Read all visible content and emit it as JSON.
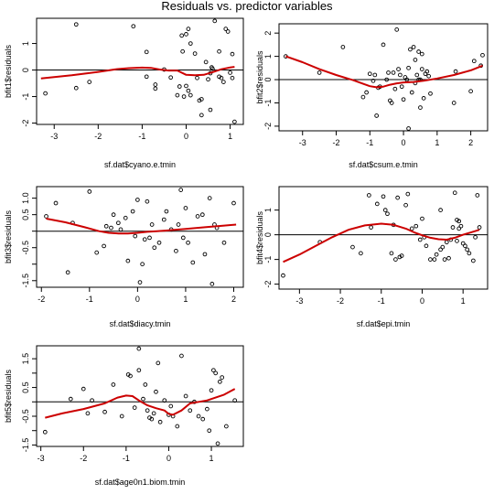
{
  "title": "Residuals vs. predictor variables",
  "colors": {
    "smooth_line": "#cc0000",
    "points": "#000000",
    "zero_line": "#000000"
  },
  "chart_data": [
    {
      "type": "scatter",
      "xlabel": "sf.dat$cyano.e.tmin",
      "ylabel": "bfit1$residuals",
      "xlim": [
        -3.4,
        1.3
      ],
      "ylim": [
        -2.05,
        1.95
      ],
      "xticks": [
        -3,
        -2,
        -1,
        0,
        1
      ],
      "xtick_labels": [
        "-3",
        "-2",
        "-1",
        "0",
        "1"
      ],
      "yticks": [
        -2,
        -1,
        0,
        1
      ],
      "ytick_labels": [
        "-2",
        "-1",
        "0",
        "1"
      ],
      "hline": 0,
      "points": [
        [
          -3.2,
          -0.88
        ],
        [
          -2.5,
          1.72
        ],
        [
          -2.5,
          -0.68
        ],
        [
          -2.2,
          -0.45
        ],
        [
          -1.2,
          1.65
        ],
        [
          -0.9,
          0.68
        ],
        [
          -0.9,
          -0.25
        ],
        [
          -0.7,
          -0.55
        ],
        [
          -0.7,
          -0.7
        ],
        [
          -0.5,
          0.02
        ],
        [
          -0.35,
          -0.28
        ],
        [
          -0.2,
          -0.95
        ],
        [
          -0.15,
          -0.62
        ],
        [
          -0.1,
          1.3
        ],
        [
          -0.08,
          0.7
        ],
        [
          -0.05,
          -1.0
        ],
        [
          0.0,
          1.35
        ],
        [
          0.0,
          -0.6
        ],
        [
          0.05,
          -0.78
        ],
        [
          0.05,
          1.55
        ],
        [
          0.1,
          1.0
        ],
        [
          0.1,
          -0.95
        ],
        [
          0.2,
          0.62
        ],
        [
          0.25,
          -0.3
        ],
        [
          0.3,
          -1.15
        ],
        [
          0.35,
          -1.1
        ],
        [
          0.35,
          -1.7
        ],
        [
          0.45,
          0.3
        ],
        [
          0.5,
          -0.35
        ],
        [
          0.55,
          -1.5
        ],
        [
          0.55,
          -0.12
        ],
        [
          0.58,
          0.1
        ],
        [
          0.6,
          0.05
        ],
        [
          0.65,
          1.85
        ],
        [
          0.75,
          -0.25
        ],
        [
          0.75,
          0.7
        ],
        [
          0.8,
          -0.3
        ],
        [
          0.85,
          -0.45
        ],
        [
          0.9,
          1.55
        ],
        [
          0.95,
          1.45
        ],
        [
          1.0,
          -0.1
        ],
        [
          1.05,
          0.6
        ],
        [
          1.05,
          -0.3
        ],
        [
          1.1,
          -1.95
        ]
      ],
      "smooth": [
        [
          -3.3,
          -0.32
        ],
        [
          -2.6,
          -0.2
        ],
        [
          -2.0,
          -0.07
        ],
        [
          -1.6,
          0.03
        ],
        [
          -1.3,
          0.07
        ],
        [
          -1.0,
          0.09
        ],
        [
          -0.8,
          0.08
        ],
        [
          -0.6,
          0.02
        ],
        [
          -0.4,
          -0.02
        ],
        [
          -0.2,
          -0.02
        ],
        [
          0.0,
          -0.18
        ],
        [
          0.2,
          -0.2
        ],
        [
          0.4,
          -0.18
        ],
        [
          0.6,
          -0.08
        ],
        [
          0.8,
          0.03
        ],
        [
          1.0,
          0.1
        ],
        [
          1.1,
          0.12
        ]
      ]
    },
    {
      "type": "scatter",
      "xlabel": "sf.dat$csum.e.tmin",
      "ylabel": "bfit2$residuals",
      "xlim": [
        -3.7,
        2.5
      ],
      "ylim": [
        -2.2,
        2.4
      ],
      "xticks": [
        -3,
        -2,
        -1,
        0,
        1,
        2
      ],
      "xtick_labels": [
        "-3",
        "-2",
        "-1",
        "0",
        "1",
        "2"
      ],
      "yticks": [
        -2,
        -1,
        0,
        1,
        2
      ],
      "ytick_labels": [
        "-2",
        "-1",
        "0",
        "1",
        "2"
      ],
      "hline": 0,
      "points": [
        [
          -3.5,
          1.0
        ],
        [
          -2.5,
          0.3
        ],
        [
          -1.8,
          1.4
        ],
        [
          -1.2,
          -0.75
        ],
        [
          -1.1,
          -0.55
        ],
        [
          -1.0,
          0.25
        ],
        [
          -0.9,
          -0.05
        ],
        [
          -0.85,
          0.2
        ],
        [
          -0.8,
          -1.55
        ],
        [
          -0.75,
          -0.35
        ],
        [
          -0.7,
          -0.3
        ],
        [
          -0.6,
          1.5
        ],
        [
          -0.5,
          0.0
        ],
        [
          -0.45,
          0.3
        ],
        [
          -0.4,
          -0.9
        ],
        [
          -0.35,
          -1.0
        ],
        [
          -0.3,
          0.3
        ],
        [
          -0.25,
          -0.4
        ],
        [
          -0.2,
          2.15
        ],
        [
          -0.15,
          0.45
        ],
        [
          -0.1,
          0.2
        ],
        [
          -0.05,
          -0.3
        ],
        [
          0.0,
          -0.85
        ],
        [
          0.05,
          0.1
        ],
        [
          0.1,
          0.0
        ],
        [
          0.15,
          0.5
        ],
        [
          0.15,
          -2.1
        ],
        [
          0.2,
          1.3
        ],
        [
          0.25,
          -0.55
        ],
        [
          0.3,
          1.4
        ],
        [
          0.35,
          0.85
        ],
        [
          0.35,
          -0.15
        ],
        [
          0.4,
          0.2
        ],
        [
          0.45,
          0.0
        ],
        [
          0.45,
          1.2
        ],
        [
          0.5,
          0.0
        ],
        [
          0.5,
          -1.2
        ],
        [
          0.55,
          0.45
        ],
        [
          0.55,
          1.1
        ],
        [
          0.6,
          -0.8
        ],
        [
          0.65,
          0.25
        ],
        [
          0.7,
          0.35
        ],
        [
          0.75,
          0.15
        ],
        [
          0.8,
          -0.6
        ],
        [
          1.5,
          -1.0
        ],
        [
          1.55,
          0.35
        ],
        [
          2.0,
          -0.5
        ],
        [
          2.1,
          0.8
        ],
        [
          2.3,
          0.6
        ],
        [
          2.35,
          1.05
        ]
      ],
      "smooth": [
        [
          -3.5,
          1.0
        ],
        [
          -3.0,
          0.75
        ],
        [
          -2.5,
          0.45
        ],
        [
          -2.0,
          0.2
        ],
        [
          -1.5,
          -0.02
        ],
        [
          -1.2,
          -0.18
        ],
        [
          -1.0,
          -0.28
        ],
        [
          -0.8,
          -0.33
        ],
        [
          -0.6,
          -0.3
        ],
        [
          -0.4,
          -0.22
        ],
        [
          -0.2,
          -0.16
        ],
        [
          0.0,
          -0.12
        ],
        [
          0.3,
          -0.1
        ],
        [
          0.6,
          -0.05
        ],
        [
          1.0,
          0.05
        ],
        [
          1.5,
          0.2
        ],
        [
          2.0,
          0.4
        ],
        [
          2.35,
          0.6
        ]
      ]
    },
    {
      "type": "scatter",
      "xlabel": "sf.dat$diacy.tmin",
      "ylabel": "bfit3$residuals",
      "xlim": [
        -2.1,
        2.2
      ],
      "ylim": [
        -1.7,
        1.35
      ],
      "xticks": [
        -2,
        -1,
        0,
        1,
        2
      ],
      "xtick_labels": [
        "-2",
        "-1",
        "0",
        "1",
        "2"
      ],
      "yticks": [
        -1.5,
        -1.0,
        -0.5,
        0.0,
        0.5,
        1.0
      ],
      "ytick_labels": [
        "-1.5",
        "",
        "-0.5",
        "",
        "0.5",
        "1.0"
      ],
      "hline": 0,
      "points": [
        [
          -1.9,
          0.45
        ],
        [
          -1.7,
          0.85
        ],
        [
          -1.45,
          -1.25
        ],
        [
          -1.35,
          0.25
        ],
        [
          -1.0,
          1.2
        ],
        [
          -0.85,
          -0.65
        ],
        [
          -0.7,
          -0.45
        ],
        [
          -0.65,
          0.15
        ],
        [
          -0.55,
          0.1
        ],
        [
          -0.5,
          0.5
        ],
        [
          -0.4,
          0.25
        ],
        [
          -0.35,
          0.05
        ],
        [
          -0.25,
          0.4
        ],
        [
          -0.2,
          -0.9
        ],
        [
          -0.1,
          0.6
        ],
        [
          -0.05,
          -0.15
        ],
        [
          0.0,
          0.95
        ],
        [
          0.05,
          -1.55
        ],
        [
          0.1,
          -1.0
        ],
        [
          0.15,
          -0.25
        ],
        [
          0.2,
          0.9
        ],
        [
          0.25,
          -0.2
        ],
        [
          0.3,
          0.2
        ],
        [
          0.35,
          -0.5
        ],
        [
          0.45,
          -0.35
        ],
        [
          0.55,
          0.35
        ],
        [
          0.6,
          0.6
        ],
        [
          0.7,
          0.05
        ],
        [
          0.8,
          -0.6
        ],
        [
          0.85,
          0.2
        ],
        [
          0.9,
          1.25
        ],
        [
          0.95,
          -0.2
        ],
        [
          1.0,
          0.7
        ],
        [
          1.05,
          -0.35
        ],
        [
          1.15,
          -0.95
        ],
        [
          1.25,
          0.45
        ],
        [
          1.35,
          0.5
        ],
        [
          1.4,
          -0.7
        ],
        [
          1.5,
          1.0
        ],
        [
          1.55,
          -1.6
        ],
        [
          1.6,
          0.2
        ],
        [
          1.65,
          0.1
        ],
        [
          1.8,
          -0.35
        ],
        [
          2.0,
          0.85
        ]
      ],
      "smooth": [
        [
          -1.9,
          0.38
        ],
        [
          -1.5,
          0.27
        ],
        [
          -1.1,
          0.12
        ],
        [
          -0.8,
          0.0
        ],
        [
          -0.6,
          -0.05
        ],
        [
          -0.4,
          -0.07
        ],
        [
          -0.2,
          -0.07
        ],
        [
          0.0,
          -0.05
        ],
        [
          0.2,
          -0.02
        ],
        [
          0.4,
          0.0
        ],
        [
          0.6,
          0.02
        ],
        [
          1.0,
          0.07
        ],
        [
          1.4,
          0.12
        ],
        [
          1.8,
          0.17
        ],
        [
          2.05,
          0.2
        ]
      ]
    },
    {
      "type": "scatter",
      "xlabel": "sf.dat$epi.tmin",
      "ylabel": "bfit4$residuals",
      "xlim": [
        -3.5,
        1.6
      ],
      "ylim": [
        -2.2,
        1.95
      ],
      "xticks": [
        -3,
        -2,
        -1,
        0,
        1
      ],
      "xtick_labels": [
        "-3",
        "-2",
        "-1",
        "0",
        "1"
      ],
      "yticks": [
        -2,
        -1,
        0,
        1
      ],
      "ytick_labels": [
        "-2",
        "-1",
        "0",
        "1"
      ],
      "hline": 0,
      "points": [
        [
          -3.4,
          -1.65
        ],
        [
          -2.5,
          -0.3
        ],
        [
          -1.7,
          -0.5
        ],
        [
          -1.5,
          -0.75
        ],
        [
          -1.3,
          1.6
        ],
        [
          -1.25,
          0.3
        ],
        [
          -1.1,
          1.25
        ],
        [
          -0.95,
          1.55
        ],
        [
          -0.9,
          1.0
        ],
        [
          -0.85,
          0.85
        ],
        [
          -0.75,
          -0.75
        ],
        [
          -0.7,
          0.4
        ],
        [
          -0.65,
          -1.0
        ],
        [
          -0.6,
          1.5
        ],
        [
          -0.55,
          -0.9
        ],
        [
          -0.5,
          -0.85
        ],
        [
          -0.4,
          1.2
        ],
        [
          -0.35,
          1.65
        ],
        [
          -0.25,
          0.25
        ],
        [
          -0.15,
          0.35
        ],
        [
          -0.05,
          -0.2
        ],
        [
          0.0,
          0.65
        ],
        [
          0.05,
          -0.1
        ],
        [
          0.1,
          -0.45
        ],
        [
          0.2,
          -1.0
        ],
        [
          0.3,
          -1.0
        ],
        [
          0.35,
          -0.8
        ],
        [
          0.45,
          1.0
        ],
        [
          0.45,
          -0.6
        ],
        [
          0.5,
          -0.5
        ],
        [
          0.55,
          -1.0
        ],
        [
          0.6,
          -0.3
        ],
        [
          0.65,
          -0.95
        ],
        [
          0.7,
          -0.2
        ],
        [
          0.75,
          0.3
        ],
        [
          0.8,
          1.7
        ],
        [
          0.85,
          0.6
        ],
        [
          0.85,
          -0.25
        ],
        [
          0.9,
          0.25
        ],
        [
          0.9,
          0.55
        ],
        [
          0.95,
          0.35
        ],
        [
          1.0,
          -0.35
        ],
        [
          1.05,
          -0.45
        ],
        [
          1.1,
          -0.6
        ],
        [
          1.15,
          -0.75
        ],
        [
          1.25,
          -1.05
        ],
        [
          1.3,
          -0.1
        ],
        [
          1.35,
          1.6
        ],
        [
          1.4,
          0.3
        ]
      ],
      "smooth": [
        [
          -3.4,
          -1.1
        ],
        [
          -3.0,
          -0.8
        ],
        [
          -2.6,
          -0.45
        ],
        [
          -2.2,
          -0.1
        ],
        [
          -1.8,
          0.2
        ],
        [
          -1.4,
          0.38
        ],
        [
          -1.0,
          0.45
        ],
        [
          -0.7,
          0.4
        ],
        [
          -0.4,
          0.25
        ],
        [
          -0.2,
          0.1
        ],
        [
          0.0,
          -0.02
        ],
        [
          0.2,
          -0.12
        ],
        [
          0.4,
          -0.18
        ],
        [
          0.6,
          -0.2
        ],
        [
          0.8,
          -0.12
        ],
        [
          1.0,
          0.0
        ],
        [
          1.2,
          0.1
        ],
        [
          1.4,
          0.2
        ]
      ]
    },
    {
      "type": "scatter",
      "xlabel": "sf.dat$age0n1.biom.tmin",
      "ylabel": "bfit5$residuals",
      "xlim": [
        -3.1,
        1.75
      ],
      "ylim": [
        -1.55,
        1.95
      ],
      "xticks": [
        -3,
        -2,
        -1,
        0,
        1
      ],
      "xtick_labels": [
        "-3",
        "-2",
        "-1",
        "0",
        "1"
      ],
      "yticks": [
        -1.5,
        -1.0,
        -0.5,
        0.0,
        0.5,
        1.0,
        1.5
      ],
      "ytick_labels": [
        "-1.5",
        "",
        "-0.5",
        "",
        "0.5",
        "",
        "1.5"
      ],
      "hline": 0,
      "points": [
        [
          -2.9,
          -1.05
        ],
        [
          -2.3,
          0.1
        ],
        [
          -2.0,
          0.45
        ],
        [
          -1.9,
          -0.4
        ],
        [
          -1.8,
          0.05
        ],
        [
          -1.5,
          -0.35
        ],
        [
          -1.3,
          0.6
        ],
        [
          -1.1,
          -0.5
        ],
        [
          -0.95,
          0.95
        ],
        [
          -0.9,
          0.9
        ],
        [
          -0.8,
          -0.2
        ],
        [
          -0.7,
          1.85
        ],
        [
          -0.7,
          1.1
        ],
        [
          -0.6,
          0.1
        ],
        [
          -0.55,
          0.6
        ],
        [
          -0.5,
          -0.3
        ],
        [
          -0.45,
          -0.55
        ],
        [
          -0.4,
          -0.6
        ],
        [
          -0.35,
          -0.4
        ],
        [
          -0.3,
          0.35
        ],
        [
          -0.25,
          1.35
        ],
        [
          -0.2,
          -0.7
        ],
        [
          -0.1,
          0.05
        ],
        [
          0.0,
          -0.45
        ],
        [
          0.05,
          -0.15
        ],
        [
          0.1,
          -0.5
        ],
        [
          0.2,
          -0.85
        ],
        [
          0.3,
          1.6
        ],
        [
          0.4,
          0.2
        ],
        [
          0.5,
          -0.3
        ],
        [
          0.6,
          0.0
        ],
        [
          0.7,
          -0.5
        ],
        [
          0.8,
          -0.6
        ],
        [
          0.9,
          -0.25
        ],
        [
          0.95,
          -1.0
        ],
        [
          1.0,
          0.4
        ],
        [
          1.05,
          1.1
        ],
        [
          1.1,
          1.0
        ],
        [
          1.15,
          -1.45
        ],
        [
          1.2,
          0.7
        ],
        [
          1.25,
          0.85
        ],
        [
          1.35,
          -0.85
        ],
        [
          1.55,
          0.05
        ]
      ],
      "smooth": [
        [
          -2.9,
          -0.55
        ],
        [
          -2.5,
          -0.4
        ],
        [
          -2.0,
          -0.25
        ],
        [
          -1.5,
          -0.05
        ],
        [
          -1.2,
          0.15
        ],
        [
          -1.0,
          0.22
        ],
        [
          -0.85,
          0.2
        ],
        [
          -0.7,
          0.05
        ],
        [
          -0.5,
          -0.12
        ],
        [
          -0.3,
          -0.22
        ],
        [
          -0.1,
          -0.3
        ],
        [
          0.0,
          -0.42
        ],
        [
          0.1,
          -0.45
        ],
        [
          0.3,
          -0.3
        ],
        [
          0.5,
          -0.05
        ],
        [
          0.7,
          0.0
        ],
        [
          0.9,
          0.05
        ],
        [
          1.1,
          0.15
        ],
        [
          1.3,
          0.25
        ],
        [
          1.55,
          0.45
        ]
      ]
    }
  ]
}
